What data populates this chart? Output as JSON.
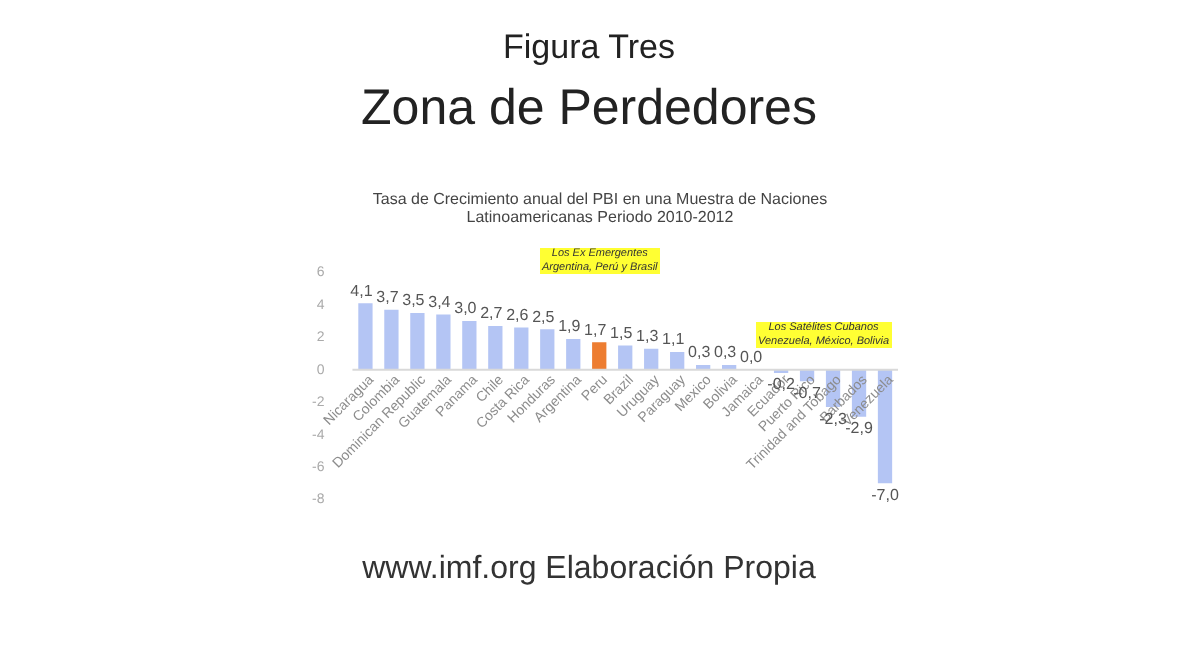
{
  "chart_data": {
    "type": "bar",
    "title": "Tasa de Crecimiento  anual del PBI en una Muestra de Naciones Latinoamericanas  Periodo 2010-2012",
    "categories": [
      "Nicaragua",
      "Colombia",
      "Dominican Republic",
      "Guatemala",
      "Panama",
      "Chile",
      "Costa Rica",
      "Honduras",
      "Argentina",
      "Peru",
      "Brazil",
      "Uruguay",
      "Paraguay",
      "Mexico",
      "Bolivia",
      "Jamaica",
      "Ecuador",
      "Puerto Rico",
      "Trinidad and Tobago",
      "Barbados",
      "Venezuela"
    ],
    "values": [
      4.1,
      3.7,
      3.5,
      3.4,
      3.0,
      2.7,
      2.6,
      2.5,
      1.9,
      1.7,
      1.5,
      1.3,
      1.1,
      0.3,
      0.3,
      0.0,
      -0.2,
      -0.7,
      -2.3,
      -2.9,
      -7.0
    ],
    "value_labels": [
      "4,1",
      "3,7",
      "3,5",
      "3,4",
      "3,0",
      "2,7",
      "2,6",
      "2,5",
      "1,9",
      "1,7",
      "1,5",
      "1,3",
      "1,1",
      "0,3",
      "0,3",
      "0,0",
      "-0,2",
      "-0,7",
      "-2,3",
      "-2,9",
      "-7,0"
    ],
    "colors": [
      "#b4c5f4",
      "#b4c5f4",
      "#b4c5f4",
      "#b4c5f4",
      "#b4c5f4",
      "#b4c5f4",
      "#b4c5f4",
      "#b4c5f4",
      "#b4c5f4",
      "#ed7d31",
      "#b4c5f4",
      "#b4c5f4",
      "#b4c5f4",
      "#b4c5f4",
      "#b4c5f4",
      "#b4c5f4",
      "#b4c5f4",
      "#b4c5f4",
      "#b4c5f4",
      "#b4c5f4",
      "#b4c5f4"
    ],
    "ylim": [
      -8,
      6
    ],
    "yticks": [
      -8,
      -6,
      -4,
      -2,
      0,
      2,
      4,
      6
    ],
    "grid": false,
    "annotations": [
      "Figura Tres",
      "Zona de Perdedores",
      "Los Ex Emergentes\nArgentina, Perú y Brasil",
      "Los Satélites Cubanos\nVenezuela, México, Bolivia",
      "www.imf.org Elaboración Propia"
    ]
  }
}
